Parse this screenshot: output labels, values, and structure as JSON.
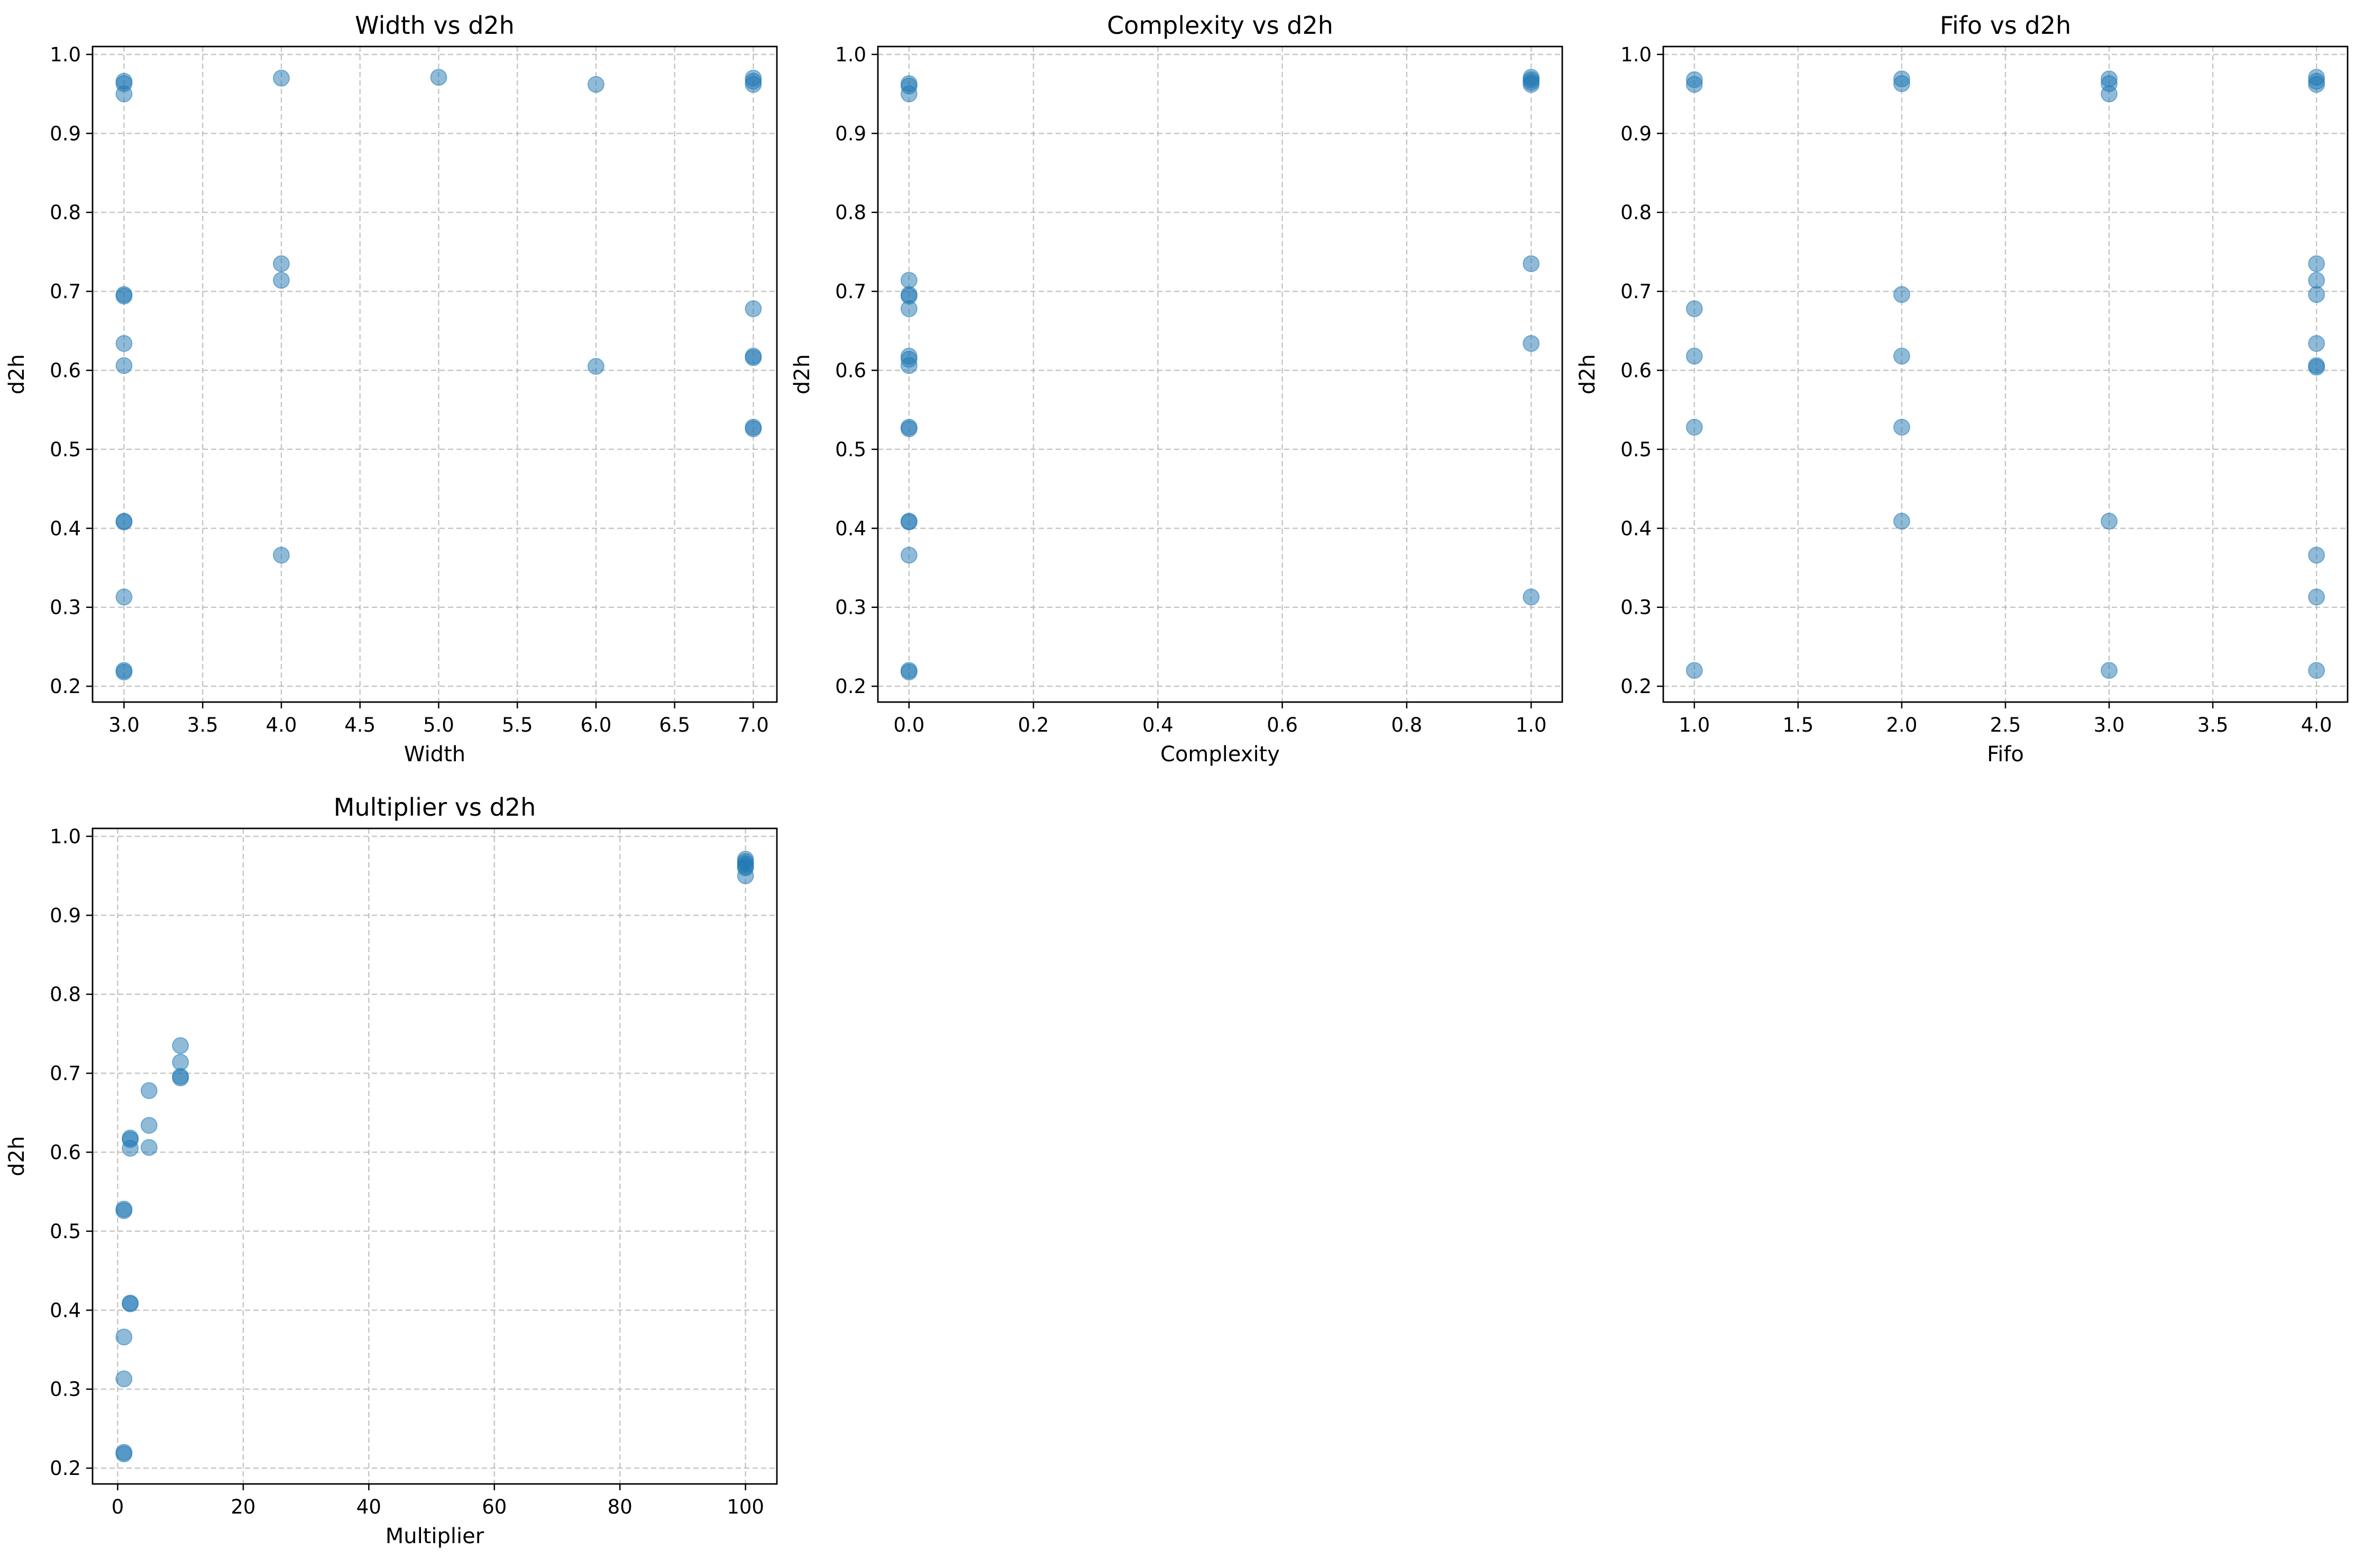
{
  "figure": {
    "background": "#ffffff",
    "point_color": "#1f77b4",
    "point_opacity": 0.5,
    "grid_color": "#b0b0b0"
  },
  "chart_data": [
    {
      "type": "scatter",
      "title": "Width vs d2h",
      "xlabel": "Width",
      "ylabel": "d2h",
      "xlim": [
        2.8,
        7.15
      ],
      "ylim": [
        0.18,
        1.01
      ],
      "xticks": [
        3.0,
        3.5,
        4.0,
        4.5,
        5.0,
        5.5,
        6.0,
        6.5,
        7.0
      ],
      "xtick_labels": [
        "3.0",
        "3.5",
        "4.0",
        "4.5",
        "5.0",
        "5.5",
        "6.0",
        "6.5",
        "7.0"
      ],
      "yticks": [
        0.2,
        0.3,
        0.4,
        0.5,
        0.6,
        0.7,
        0.8,
        0.9,
        1.0
      ],
      "ytick_labels": [
        "0.2",
        "0.3",
        "0.4",
        "0.5",
        "0.6",
        "0.7",
        "0.8",
        "0.9",
        "1.0"
      ],
      "grid": true,
      "points": [
        {
          "x": 3,
          "y": 0.966
        },
        {
          "x": 3,
          "y": 0.963
        },
        {
          "x": 3,
          "y": 0.95
        },
        {
          "x": 3,
          "y": 0.696
        },
        {
          "x": 3,
          "y": 0.694
        },
        {
          "x": 3,
          "y": 0.634
        },
        {
          "x": 3,
          "y": 0.606
        },
        {
          "x": 3,
          "y": 0.409
        },
        {
          "x": 3,
          "y": 0.408
        },
        {
          "x": 3,
          "y": 0.313
        },
        {
          "x": 3,
          "y": 0.22
        },
        {
          "x": 3,
          "y": 0.218
        },
        {
          "x": 4,
          "y": 0.97
        },
        {
          "x": 4,
          "y": 0.735
        },
        {
          "x": 4,
          "y": 0.714
        },
        {
          "x": 4,
          "y": 0.366
        },
        {
          "x": 5,
          "y": 0.971
        },
        {
          "x": 6,
          "y": 0.962
        },
        {
          "x": 6,
          "y": 0.605
        },
        {
          "x": 7,
          "y": 0.97
        },
        {
          "x": 7,
          "y": 0.966
        },
        {
          "x": 7,
          "y": 0.962
        },
        {
          "x": 7,
          "y": 0.678
        },
        {
          "x": 7,
          "y": 0.618
        },
        {
          "x": 7,
          "y": 0.616
        },
        {
          "x": 7,
          "y": 0.528
        },
        {
          "x": 7,
          "y": 0.526
        }
      ]
    },
    {
      "type": "scatter",
      "title": "Complexity vs d2h",
      "xlabel": "Complexity",
      "ylabel": "d2h",
      "xlim": [
        -0.05,
        1.05
      ],
      "ylim": [
        0.18,
        1.01
      ],
      "xticks": [
        0.0,
        0.2,
        0.4,
        0.6,
        0.8,
        1.0
      ],
      "xtick_labels": [
        "0.0",
        "0.2",
        "0.4",
        "0.6",
        "0.8",
        "1.0"
      ],
      "yticks": [
        0.2,
        0.3,
        0.4,
        0.5,
        0.6,
        0.7,
        0.8,
        0.9,
        1.0
      ],
      "ytick_labels": [
        "0.2",
        "0.3",
        "0.4",
        "0.5",
        "0.6",
        "0.7",
        "0.8",
        "0.9",
        "1.0"
      ],
      "grid": true,
      "points": [
        {
          "x": 0,
          "y": 0.963
        },
        {
          "x": 0,
          "y": 0.96
        },
        {
          "x": 0,
          "y": 0.95
        },
        {
          "x": 0,
          "y": 0.714
        },
        {
          "x": 0,
          "y": 0.696
        },
        {
          "x": 0,
          "y": 0.694
        },
        {
          "x": 0,
          "y": 0.678
        },
        {
          "x": 0,
          "y": 0.618
        },
        {
          "x": 0,
          "y": 0.614
        },
        {
          "x": 0,
          "y": 0.606
        },
        {
          "x": 0,
          "y": 0.528
        },
        {
          "x": 0,
          "y": 0.526
        },
        {
          "x": 0,
          "y": 0.409
        },
        {
          "x": 0,
          "y": 0.408
        },
        {
          "x": 0,
          "y": 0.366
        },
        {
          "x": 0,
          "y": 0.22
        },
        {
          "x": 0,
          "y": 0.218
        },
        {
          "x": 1,
          "y": 0.971
        },
        {
          "x": 1,
          "y": 0.968
        },
        {
          "x": 1,
          "y": 0.965
        },
        {
          "x": 1,
          "y": 0.962
        },
        {
          "x": 1,
          "y": 0.735
        },
        {
          "x": 1,
          "y": 0.634
        },
        {
          "x": 1,
          "y": 0.313
        }
      ]
    },
    {
      "type": "scatter",
      "title": "Fifo vs d2h",
      "xlabel": "Fifo",
      "ylabel": "d2h",
      "xlim": [
        0.85,
        4.15
      ],
      "ylim": [
        0.18,
        1.01
      ],
      "xticks": [
        1.0,
        1.5,
        2.0,
        2.5,
        3.0,
        3.5,
        4.0
      ],
      "xtick_labels": [
        "1.0",
        "1.5",
        "2.0",
        "2.5",
        "3.0",
        "3.5",
        "4.0"
      ],
      "yticks": [
        0.2,
        0.3,
        0.4,
        0.5,
        0.6,
        0.7,
        0.8,
        0.9,
        1.0
      ],
      "ytick_labels": [
        "0.2",
        "0.3",
        "0.4",
        "0.5",
        "0.6",
        "0.7",
        "0.8",
        "0.9",
        "1.0"
      ],
      "grid": true,
      "points": [
        {
          "x": 1,
          "y": 0.968
        },
        {
          "x": 1,
          "y": 0.962
        },
        {
          "x": 1,
          "y": 0.678
        },
        {
          "x": 1,
          "y": 0.618
        },
        {
          "x": 1,
          "y": 0.528
        },
        {
          "x": 1,
          "y": 0.22
        },
        {
          "x": 2,
          "y": 0.969
        },
        {
          "x": 2,
          "y": 0.963
        },
        {
          "x": 2,
          "y": 0.696
        },
        {
          "x": 2,
          "y": 0.618
        },
        {
          "x": 2,
          "y": 0.528
        },
        {
          "x": 2,
          "y": 0.409
        },
        {
          "x": 3,
          "y": 0.969
        },
        {
          "x": 3,
          "y": 0.963
        },
        {
          "x": 3,
          "y": 0.95
        },
        {
          "x": 3,
          "y": 0.409
        },
        {
          "x": 3,
          "y": 0.22
        },
        {
          "x": 4,
          "y": 0.971
        },
        {
          "x": 4,
          "y": 0.966
        },
        {
          "x": 4,
          "y": 0.962
        },
        {
          "x": 4,
          "y": 0.735
        },
        {
          "x": 4,
          "y": 0.714
        },
        {
          "x": 4,
          "y": 0.696
        },
        {
          "x": 4,
          "y": 0.634
        },
        {
          "x": 4,
          "y": 0.606
        },
        {
          "x": 4,
          "y": 0.604
        },
        {
          "x": 4,
          "y": 0.366
        },
        {
          "x": 4,
          "y": 0.313
        },
        {
          "x": 4,
          "y": 0.22
        }
      ]
    },
    {
      "type": "scatter",
      "title": "Multiplier vs d2h",
      "xlabel": "Multiplier",
      "ylabel": "d2h",
      "xlim": [
        -4,
        105
      ],
      "ylim": [
        0.18,
        1.01
      ],
      "xticks": [
        0,
        20,
        40,
        60,
        80,
        100
      ],
      "xtick_labels": [
        "0",
        "20",
        "40",
        "60",
        "80",
        "100"
      ],
      "yticks": [
        0.2,
        0.3,
        0.4,
        0.5,
        0.6,
        0.7,
        0.8,
        0.9,
        1.0
      ],
      "ytick_labels": [
        "0.2",
        "0.3",
        "0.4",
        "0.5",
        "0.6",
        "0.7",
        "0.8",
        "0.9",
        "1.0"
      ],
      "grid": true,
      "points": [
        {
          "x": 1,
          "y": 0.528
        },
        {
          "x": 1,
          "y": 0.526
        },
        {
          "x": 1,
          "y": 0.366
        },
        {
          "x": 1,
          "y": 0.313
        },
        {
          "x": 1,
          "y": 0.22
        },
        {
          "x": 1,
          "y": 0.218
        },
        {
          "x": 2,
          "y": 0.618
        },
        {
          "x": 2,
          "y": 0.616
        },
        {
          "x": 2,
          "y": 0.605
        },
        {
          "x": 2,
          "y": 0.409
        },
        {
          "x": 2,
          "y": 0.408
        },
        {
          "x": 5,
          "y": 0.678
        },
        {
          "x": 5,
          "y": 0.634
        },
        {
          "x": 5,
          "y": 0.606
        },
        {
          "x": 10,
          "y": 0.735
        },
        {
          "x": 10,
          "y": 0.714
        },
        {
          "x": 10,
          "y": 0.696
        },
        {
          "x": 10,
          "y": 0.694
        },
        {
          "x": 100,
          "y": 0.971
        },
        {
          "x": 100,
          "y": 0.968
        },
        {
          "x": 100,
          "y": 0.965
        },
        {
          "x": 100,
          "y": 0.962
        },
        {
          "x": 100,
          "y": 0.96
        },
        {
          "x": 100,
          "y": 0.95
        }
      ]
    }
  ]
}
